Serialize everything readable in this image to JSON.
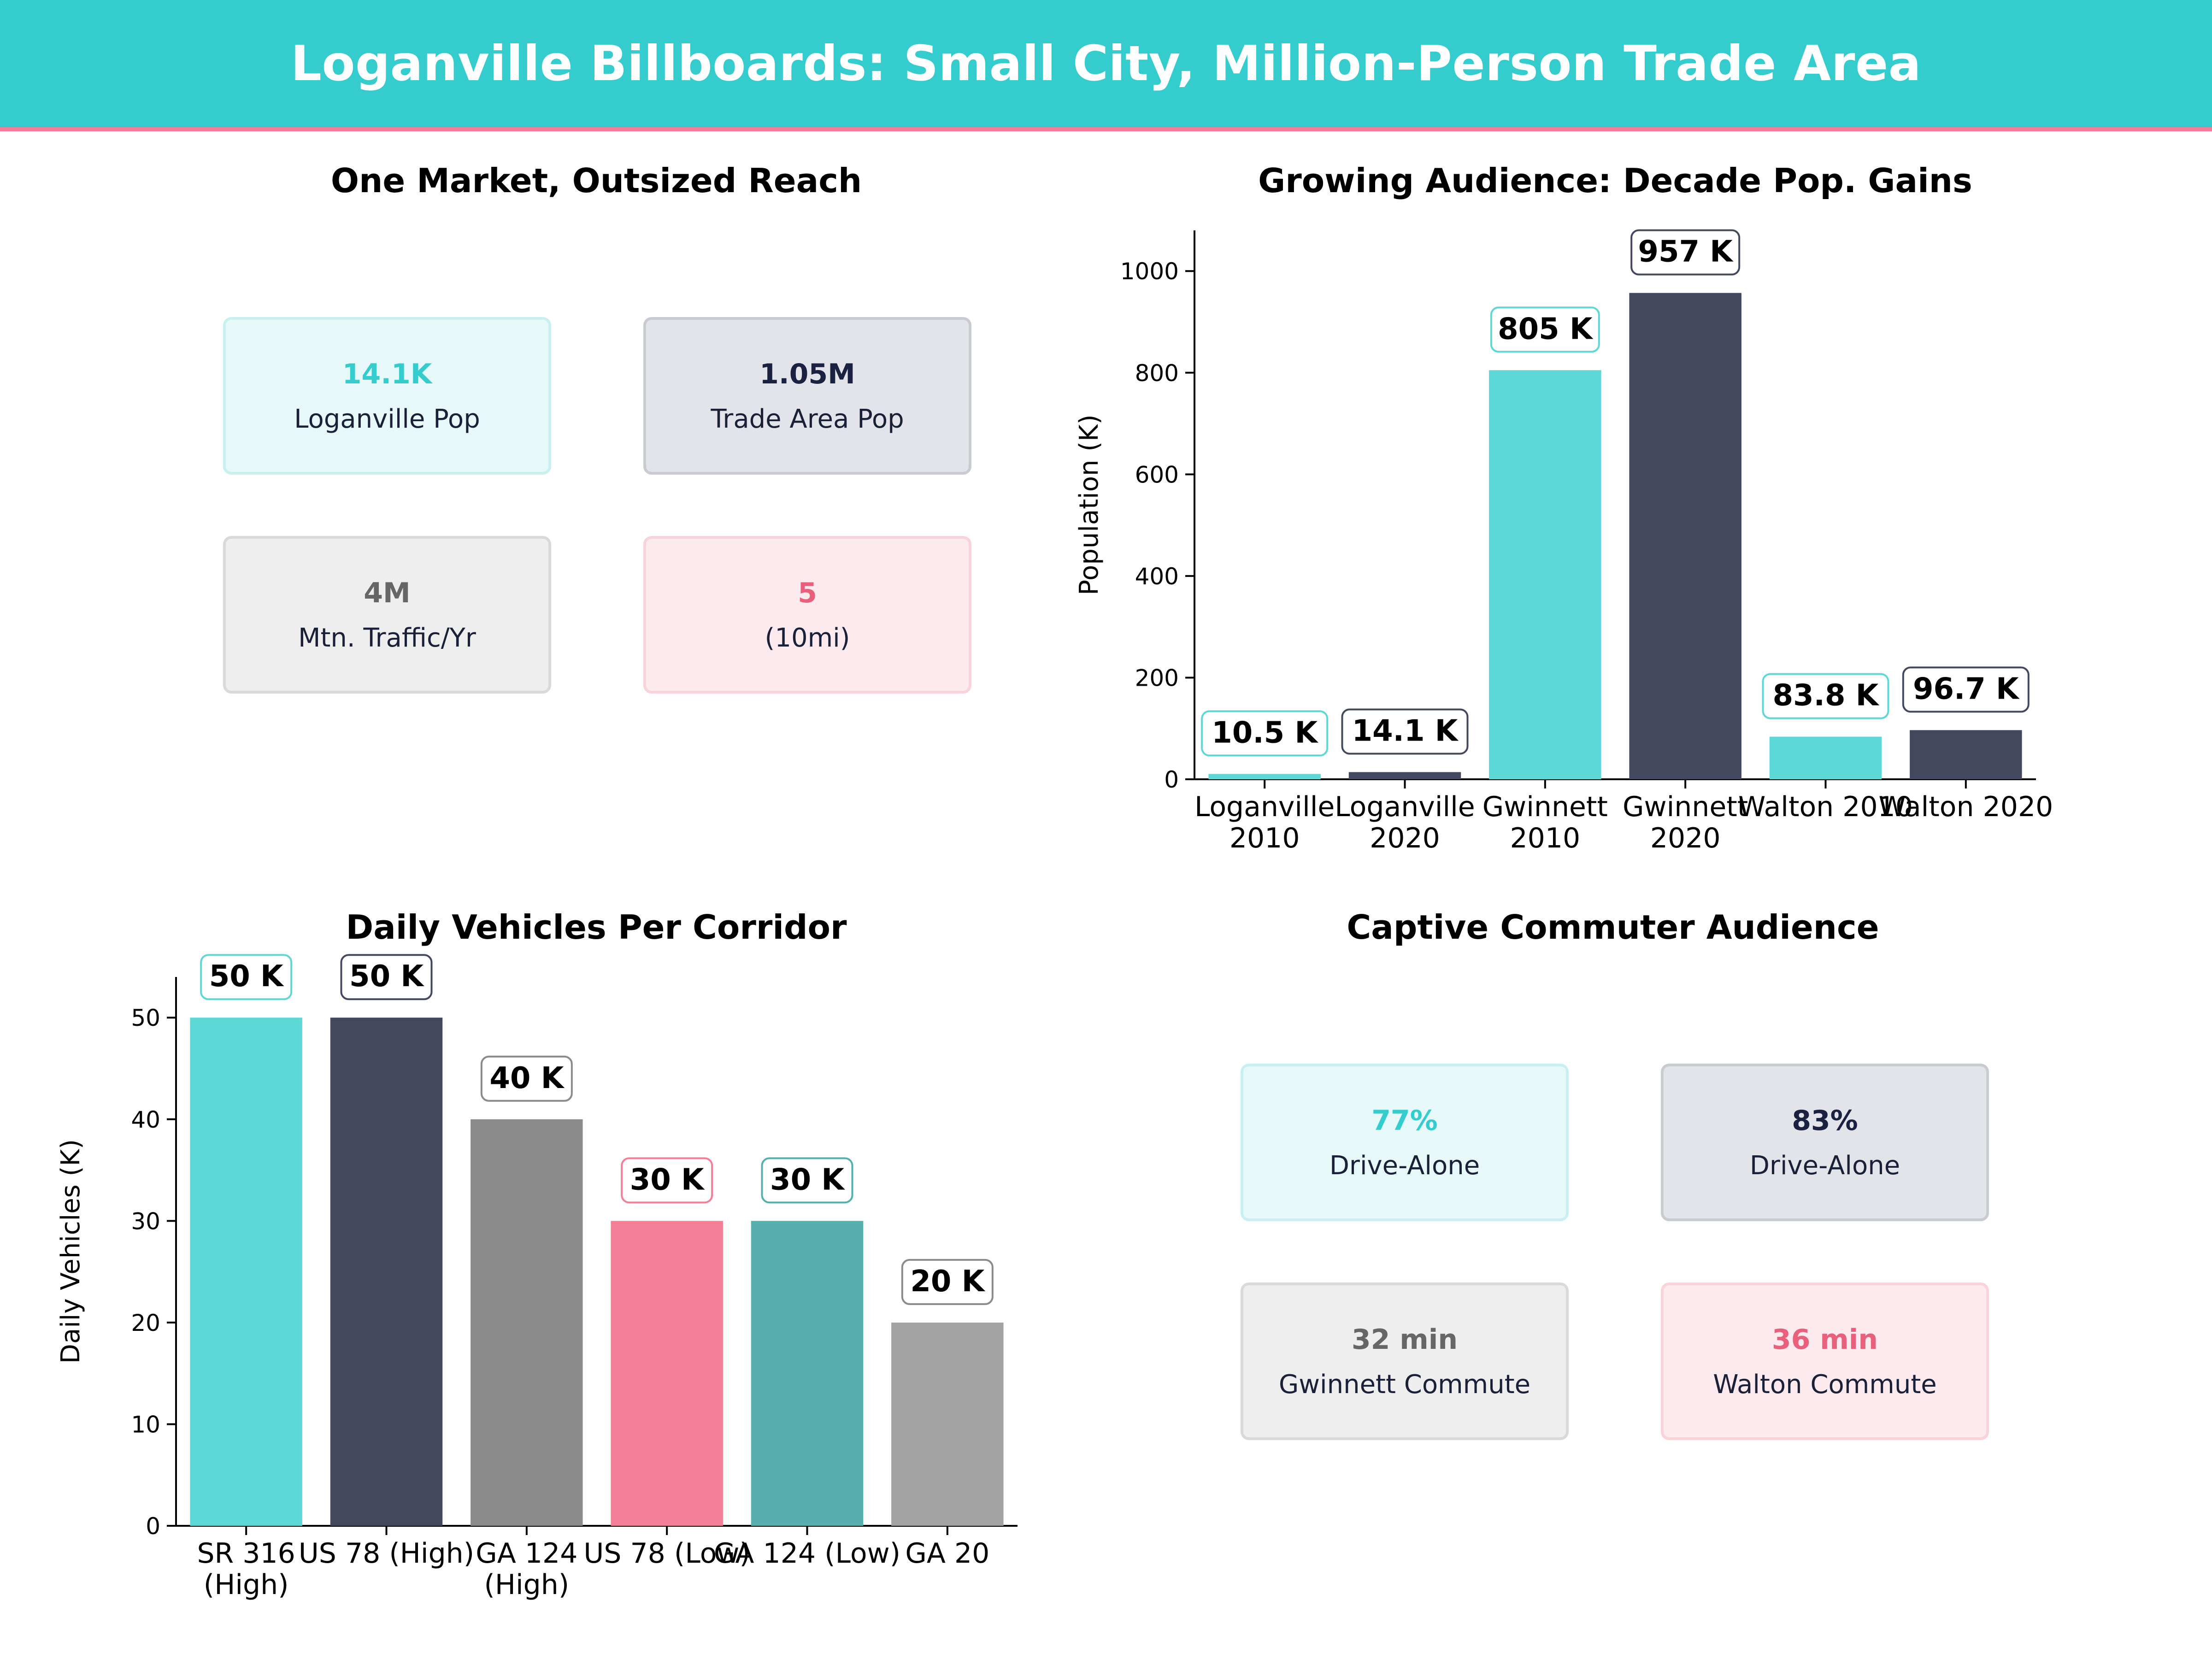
{
  "header": {
    "title": "Loganville Billboards: Small City, Million-Person Trade Area"
  },
  "panels": {
    "market": {
      "title": "One Market, Outsized Reach",
      "cards": [
        {
          "value": "14.1K",
          "label": "Loganville Pop",
          "accent": "#35CCCD",
          "bg": "#E6F8F8",
          "border": "#C8F0F0"
        },
        {
          "value": "1.05M",
          "label": "Trade Area Pop",
          "accent": "#1B2140",
          "bg": "#E3E4E9",
          "border": "#C9CBD2"
        },
        {
          "value": "4M",
          "label": "Mtn. Traffic/Yr",
          "accent": "#666666",
          "bg": "#EEEEEE",
          "border": "#D9D9D9"
        },
        {
          "value": "5",
          "label": "(10mi)",
          "accent": "#E8607C",
          "bg": "#FDEAEE",
          "border": "#F9D3DA"
        }
      ]
    },
    "commuter": {
      "title": "Captive Commuter Audience",
      "cards": [
        {
          "value": "77%",
          "label": "Drive-Alone",
          "accent": "#35CCCD",
          "bg": "#E6F8F8",
          "border": "#C8F0F0"
        },
        {
          "value": "83%",
          "label": "Drive-Alone",
          "accent": "#1B2140",
          "bg": "#E3E4E9",
          "border": "#C9CBD2"
        },
        {
          "value": "32 min",
          "label": "Gwinnett Commute",
          "accent": "#666666",
          "bg": "#EEEEEE",
          "border": "#D9D9D9"
        },
        {
          "value": "36 min",
          "label": "Walton Commute",
          "accent": "#E8607C",
          "bg": "#FDEAEE",
          "border": "#F9D3DA"
        }
      ]
    }
  },
  "chart_data": [
    {
      "type": "bar",
      "title": "Growing Audience: Decade Pop. Gains",
      "xlabel": "",
      "ylabel": "Population (K)",
      "ylim": [
        0,
        1080
      ],
      "yticks": [
        0,
        200,
        400,
        600,
        800,
        1000
      ],
      "categories": [
        "Loganville\n2010",
        "Loganville\n2020",
        "Gwinnett\n2010",
        "Gwinnett\n2020",
        "Walton 2010",
        "Walton 2020"
      ],
      "values": [
        10.5,
        14.1,
        805,
        957,
        83.8,
        96.7
      ],
      "data_labels": [
        "10.5 K",
        "14.1 K",
        "805 K",
        "957 K",
        "83.8 K",
        "96.7 K"
      ],
      "colors": [
        "#5DD8D6",
        "#44485E",
        "#5DD8D6",
        "#44485E",
        "#5DD8D6",
        "#44485E"
      ],
      "label_borders": [
        "#5DD8D6",
        "#44485E",
        "#5DD8D6",
        "#44485E",
        "#5DD8D6",
        "#44485E"
      ],
      "grid": false,
      "legend": "none"
    },
    {
      "type": "bar",
      "title": "Daily Vehicles Per Corridor",
      "xlabel": "",
      "ylabel": "Daily Vehicles (K)",
      "ylim": [
        0,
        54
      ],
      "yticks": [
        0,
        10,
        20,
        30,
        40,
        50
      ],
      "categories": [
        "SR 316\n(High)",
        "US 78 (High)",
        "GA 124\n(High)",
        "US 78 (Low)",
        "GA 124 (Low)",
        "GA 20"
      ],
      "values": [
        50,
        50,
        40,
        30,
        30,
        20
      ],
      "data_labels": [
        "50 K",
        "50 K",
        "40 K",
        "30 K",
        "30 K",
        "20 K"
      ],
      "colors": [
        "#5DD8D6",
        "#44485E",
        "#8B8B8B",
        "#F47E95",
        "#56AEAE",
        "#A3A3A3"
      ],
      "label_borders": [
        "#5DD8D6",
        "#44485E",
        "#8B8B8B",
        "#F47E95",
        "#56AEAE",
        "#8B8B8B"
      ],
      "grid": false,
      "legend": "none"
    }
  ]
}
